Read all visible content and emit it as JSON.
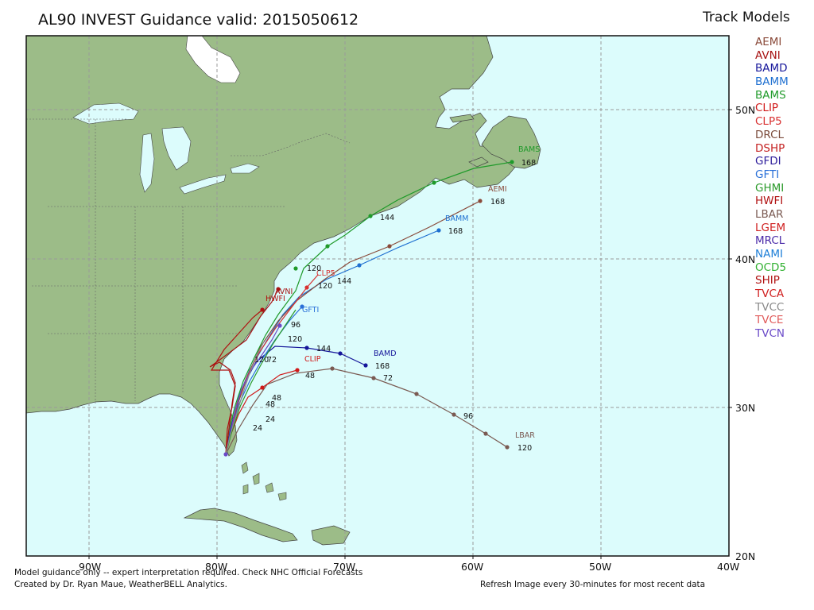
{
  "title": "AL90 INVEST Guidance valid: 2015050612",
  "legend": {
    "title": "Track Models",
    "models": [
      {
        "name": "AEMI",
        "color": "#8a4a3a"
      },
      {
        "name": "AVNI",
        "color": "#a81414"
      },
      {
        "name": "BAMD",
        "color": "#16169a"
      },
      {
        "name": "BAMM",
        "color": "#1e6fd0"
      },
      {
        "name": "BAMS",
        "color": "#1f9a2a"
      },
      {
        "name": "CLIP",
        "color": "#d01818"
      },
      {
        "name": "CLP5",
        "color": "#d83030"
      },
      {
        "name": "DRCL",
        "color": "#7a4a3a"
      },
      {
        "name": "DSHP",
        "color": "#c42020"
      },
      {
        "name": "GFDI",
        "color": "#2a1a9a"
      },
      {
        "name": "GFTI",
        "color": "#2a70d8"
      },
      {
        "name": "GHMI",
        "color": "#2a9a2a"
      },
      {
        "name": "HWFI",
        "color": "#b01010"
      },
      {
        "name": "LBAR",
        "color": "#7a5a52"
      },
      {
        "name": "LGEM",
        "color": "#d02020"
      },
      {
        "name": "MRCL",
        "color": "#4a2aa8"
      },
      {
        "name": "NAMI",
        "color": "#2080d8"
      },
      {
        "name": "OCD5",
        "color": "#30b030"
      },
      {
        "name": "SHIP",
        "color": "#b01010"
      },
      {
        "name": "TVCA",
        "color": "#d02020"
      },
      {
        "name": "TVCC",
        "color": "#8a8a8a"
      },
      {
        "name": "TVCE",
        "color": "#e05a5a"
      },
      {
        "name": "TVCN",
        "color": "#6a4ac8"
      }
    ]
  },
  "map": {
    "lat_labels": [
      "50N",
      "40N",
      "30N",
      "20N"
    ],
    "lon_labels": [
      "90W",
      "80W",
      "70W",
      "60W",
      "50W",
      "40W"
    ],
    "colors": {
      "ocean": "#dcfcfc",
      "land": "#9cbc88",
      "lakes": "#dcfcfc",
      "grid": "#9a9a9a"
    }
  },
  "labels": {
    "lbar": "LBAR",
    "bamd": "BAMD",
    "clip": "CLIP",
    "bamm": "BAMM",
    "aemi": "AEMI",
    "bams": "BAMS",
    "clp5": "CLP5",
    "avni": "AVNI",
    "hwfi": "HWFI",
    "gfti": "GFTI"
  },
  "hours": {
    "lbar_120": "120",
    "lbar_96": "96",
    "lbar_72": "72",
    "lbar_48": "48",
    "bamd_168": "168",
    "bamd_144": "144",
    "bamm_168": "168",
    "bamm_144": "144",
    "aemi_168": "168",
    "bams_168": "168",
    "bams_144": "144",
    "bams_120": "120",
    "clp5_120": "120",
    "ship_96": "96",
    "mid_120": "120",
    "mid_120b": "120",
    "c_72": "72",
    "c_48a": "48",
    "c_48b": "48",
    "c_24a": "24",
    "c_24b": "24"
  },
  "footer": {
    "note": "Model guidance only -- expert interpretation required.  Check NHC Official Forecasts",
    "credit": "Created by Dr. Ryan Maue, WeatherBELL Analytics.",
    "refresh": "Refresh Image every 30-minutes for most recent data"
  }
}
